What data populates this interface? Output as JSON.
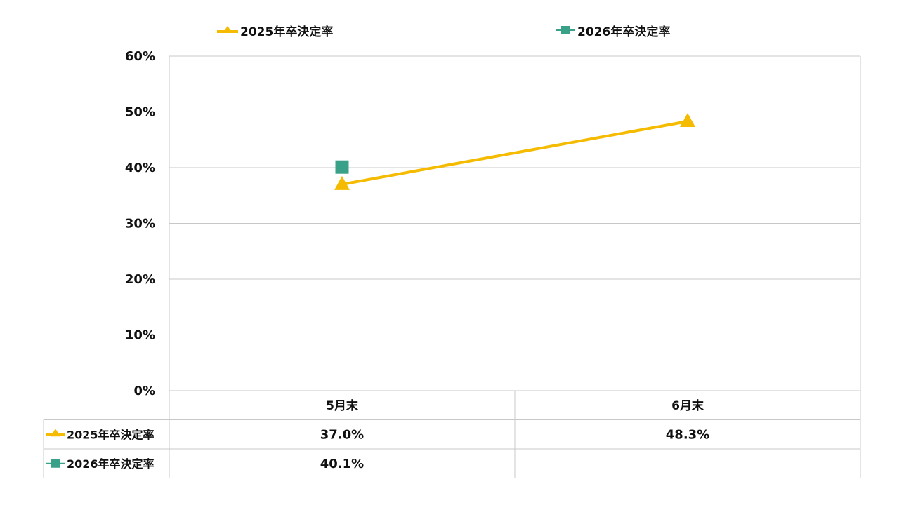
{
  "colors": {
    "series_2025": "#f5bb00",
    "series_2026": "#3aa189",
    "grid": "#c8c8c8",
    "text": "#111111"
  },
  "chart_data": {
    "type": "line",
    "categories": [
      "5月末",
      "6月末"
    ],
    "series": [
      {
        "name": "2025年卒決定率",
        "values": [
          37.0,
          48.3
        ],
        "marker": "triangle",
        "color": "#f5bb00"
      },
      {
        "name": "2026年卒決定率",
        "values": [
          40.1,
          null
        ],
        "marker": "square",
        "color": "#3aa189"
      }
    ],
    "ylim": [
      0,
      60
    ],
    "yticks": [
      "0%",
      "10%",
      "20%",
      "30%",
      "40%",
      "50%",
      "60%"
    ],
    "grid": true,
    "legend": "top",
    "data_table": [
      [
        "37.0%",
        "48.3%"
      ],
      [
        "40.1%",
        ""
      ]
    ]
  }
}
